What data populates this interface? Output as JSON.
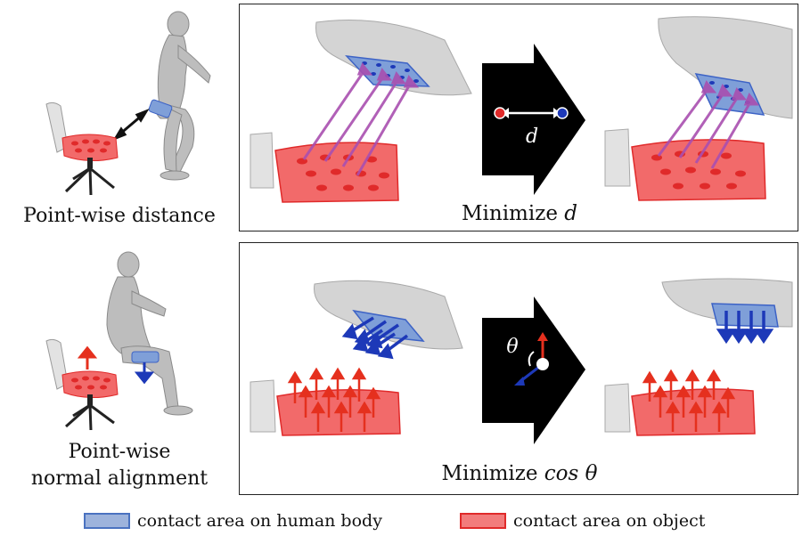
{
  "rows": [
    {
      "left_caption": "Point-wise distance",
      "panel_caption_prefix": "Minimize ",
      "panel_caption_var": "d",
      "arrow_label": "d"
    },
    {
      "left_caption_line1": "Point-wise",
      "left_caption_line2": "normal alignment",
      "panel_caption_prefix": "Minimize ",
      "panel_caption_var": "cos θ",
      "arrow_label": "θ"
    }
  ],
  "legend": [
    {
      "label": "contact area on human body",
      "fill": "#9db3dc",
      "stroke": "#4a72c0"
    },
    {
      "label": "contact area on object",
      "fill": "#f27c7c",
      "stroke": "#e02a2a"
    }
  ],
  "colors": {
    "object_contact": "#f26a6a",
    "object_stroke": "#e02a2a",
    "human_contact": "#7f9fd8",
    "human_stroke": "#3d63c6",
    "distance_arrow": "#a94fb0",
    "normal_object": "#e5301e",
    "normal_human": "#1d39b8",
    "mesh_gray": "#c8c8c8"
  }
}
